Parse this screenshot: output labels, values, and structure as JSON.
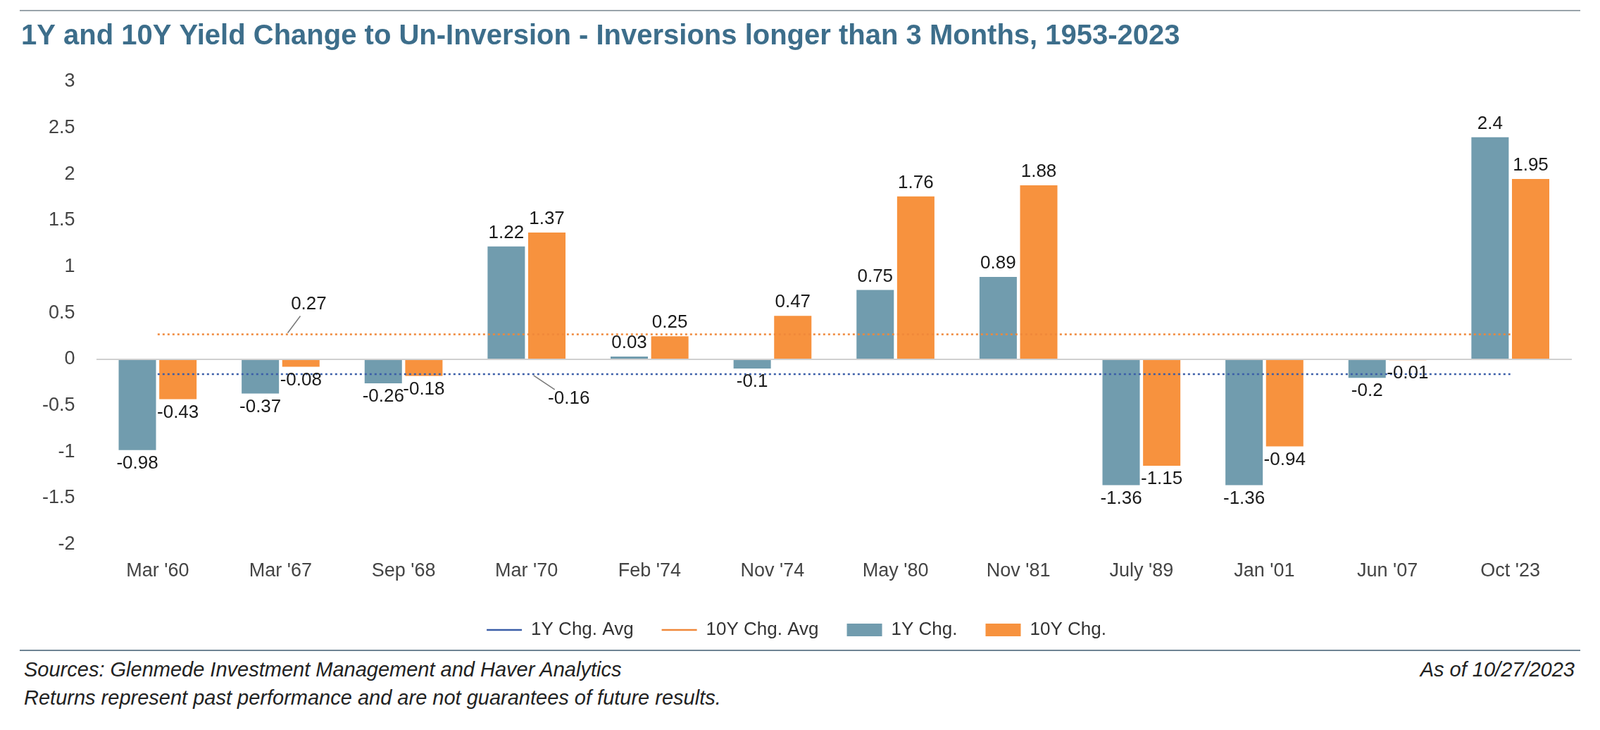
{
  "chart_data": {
    "type": "bar",
    "title": "1Y and 10Y Yield Change to Un-Inversion - Inversions longer than 3 Months, 1953-2023",
    "source": "Sources: Glenmede Investment Management and Haver Analytics",
    "disclaimer": "Returns represent past performance and are not guarantees of future results.",
    "as_of": "As of 10/27/2023",
    "categories": [
      "Mar '60",
      "Mar '67",
      "Sep '68",
      "Mar '70",
      "Feb '74",
      "Nov '74",
      "May '80",
      "Nov '81",
      "July '89",
      "Jan '01",
      "Jun '07",
      "Oct '23"
    ],
    "series": [
      {
        "name": "1Y Chg.",
        "type": "bar",
        "color": "#719cae",
        "values": [
          -0.98,
          -0.37,
          -0.26,
          1.22,
          0.03,
          -0.1,
          0.75,
          0.89,
          -1.36,
          -1.36,
          -0.2,
          2.4
        ]
      },
      {
        "name": "10Y Chg.",
        "type": "bar",
        "color": "#f7923e",
        "values": [
          -0.43,
          -0.08,
          -0.18,
          1.37,
          0.25,
          0.47,
          1.76,
          1.88,
          -1.15,
          -0.94,
          -0.01,
          1.95
        ]
      },
      {
        "name": "1Y Chg. Avg",
        "type": "line",
        "line_style": "dotted",
        "color": "#3b5ea8",
        "values": [
          -0.16,
          -0.16,
          -0.16,
          -0.16,
          -0.16,
          -0.16,
          -0.16,
          -0.16,
          -0.16,
          -0.16,
          -0.16,
          -0.16
        ]
      },
      {
        "name": "10Y Chg. Avg",
        "type": "line",
        "line_style": "dotted",
        "color": "#f0883a",
        "values": [
          0.27,
          0.27,
          0.27,
          0.27,
          0.27,
          0.27,
          0.27,
          0.27,
          0.27,
          0.27,
          0.27,
          0.27
        ]
      }
    ],
    "ylim": [
      -2,
      3
    ],
    "yticks": [
      -2,
      -1.5,
      -1,
      -0.5,
      0,
      0.5,
      1,
      1.5,
      2,
      2.5,
      3
    ],
    "grid": false,
    "legend": "bottom",
    "data_labels": true
  }
}
